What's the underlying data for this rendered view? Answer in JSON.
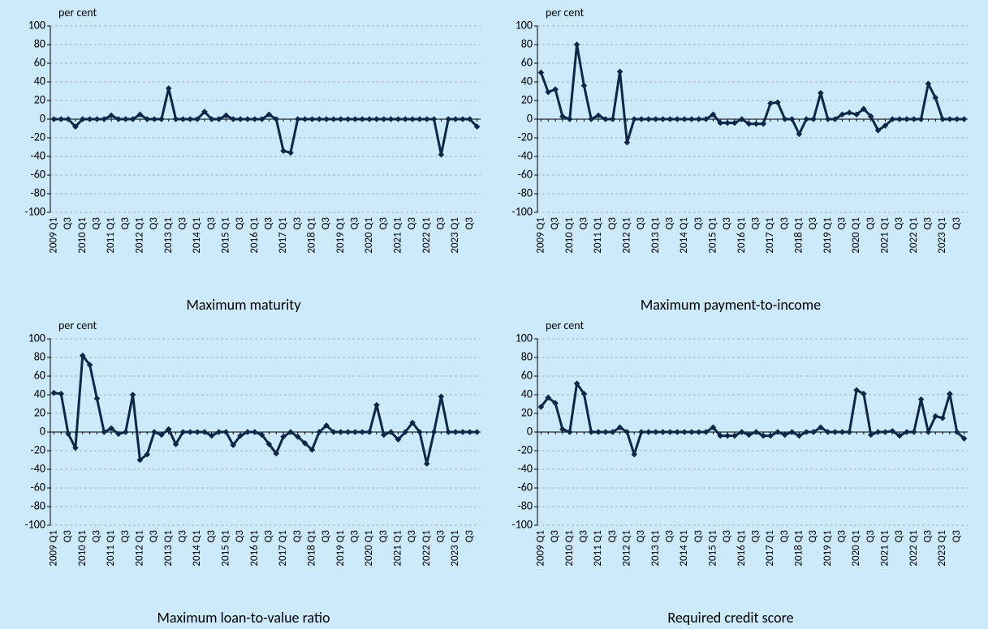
{
  "chart_data": [
    {
      "type": "line",
      "title": "Maximum maturity",
      "y_label": "per cent",
      "color": "#0e2748",
      "categories": [
        "2009 Q1",
        null,
        "Q3",
        null,
        "2010 Q1",
        null,
        "Q3",
        null,
        "2011 Q1",
        null,
        "Q3",
        null,
        "2012 Q1",
        null,
        "Q3",
        null,
        "2013 Q1",
        null,
        "Q3",
        null,
        "2014 Q1",
        null,
        "Q3",
        null,
        "2015 Q1",
        null,
        "Q3",
        null,
        "2016 Q1",
        null,
        "Q3",
        null,
        "2017 Q1",
        null,
        "Q3",
        null,
        "2018 Q1",
        null,
        "Q3",
        null,
        "2019 Q1",
        null,
        "Q3",
        null,
        "2020 Q1",
        null,
        "Q3",
        null,
        "2021 Q1",
        null,
        "Q3",
        null,
        "2022 Q1",
        null,
        "Q3",
        null,
        "2023 Q1",
        null,
        "Q3",
        null
      ],
      "values": [
        0,
        0,
        0,
        -8,
        0,
        0,
        0,
        0,
        4,
        0,
        0,
        0,
        5,
        0,
        0,
        0,
        33,
        0,
        0,
        0,
        0,
        8,
        0,
        0,
        4,
        0,
        0,
        0,
        0,
        0,
        5,
        0,
        -34,
        -36,
        0,
        0,
        0,
        0,
        0,
        0,
        0,
        0,
        0,
        0,
        0,
        0,
        0,
        0,
        0,
        0,
        0,
        0,
        0,
        0,
        -38,
        0,
        0,
        0,
        0,
        -8
      ],
      "ylim": [
        -100,
        100
      ],
      "yticks": [
        -100,
        -80,
        -60,
        -40,
        -20,
        0,
        20,
        40,
        60,
        80,
        100
      ],
      "grid": true
    },
    {
      "type": "line",
      "title": "Maximum payment-to-income",
      "y_label": "per cent",
      "color": "#0e2748",
      "categories": [
        "2009 Q1",
        null,
        "Q3",
        null,
        "2010 Q1",
        null,
        "Q3",
        null,
        "2011 Q1",
        null,
        "Q3",
        null,
        "2012 Q1",
        null,
        "Q3",
        null,
        "2013 Q1",
        null,
        "Q3",
        null,
        "2014 Q1",
        null,
        "Q3",
        null,
        "2015 Q1",
        null,
        "Q3",
        null,
        "2016 Q1",
        null,
        "Q3",
        null,
        "2017 Q1",
        null,
        "Q3",
        null,
        "2018 Q1",
        null,
        "Q3",
        null,
        "2019 Q1",
        null,
        "Q3",
        null,
        "2020 Q1",
        null,
        "Q3",
        null,
        "2021 Q1",
        null,
        "Q3",
        null,
        "2022 Q1",
        null,
        "Q3",
        null,
        "2023 Q1",
        null,
        "Q3",
        null
      ],
      "values": [
        50,
        29,
        32,
        3,
        0,
        80,
        36,
        0,
        4,
        0,
        0,
        51,
        -25,
        0,
        0,
        0,
        0,
        0,
        0,
        0,
        0,
        0,
        0,
        0,
        5,
        -4,
        -4,
        -4,
        0,
        -5,
        -5,
        -5,
        17,
        18,
        0,
        0,
        -16,
        0,
        0,
        28,
        0,
        0,
        5,
        7,
        5,
        11,
        3,
        -12,
        -7,
        0,
        0,
        0,
        0,
        0,
        38,
        23,
        0,
        0,
        0,
        0
      ],
      "ylim": [
        -100,
        100
      ],
      "yticks": [
        -100,
        -80,
        -60,
        -40,
        -20,
        0,
        20,
        40,
        60,
        80,
        100
      ],
      "grid": true
    },
    {
      "type": "line",
      "title": "Maximum loan-to-value ratio",
      "y_label": "per cent",
      "color": "#0e2748",
      "categories": [
        "2009 Q1",
        null,
        "Q3",
        null,
        "2010 Q1",
        null,
        "Q3",
        null,
        "2011 Q1",
        null,
        "Q3",
        null,
        "2012 Q1",
        null,
        "Q3",
        null,
        "2013 Q1",
        null,
        "Q3",
        null,
        "2014 Q1",
        null,
        "Q3",
        null,
        "2015 Q1",
        null,
        "Q3",
        null,
        "2016 Q1",
        null,
        "Q3",
        null,
        "2017 Q1",
        null,
        "Q3",
        null,
        "2018 Q1",
        null,
        "Q3",
        null,
        "2019 Q1",
        null,
        "Q3",
        null,
        "2020 Q1",
        null,
        "Q3",
        null,
        "2021 Q1",
        null,
        "Q3",
        null,
        "2022 Q1",
        null,
        "Q3",
        null,
        "2023 Q1",
        null,
        "Q3",
        null
      ],
      "values": [
        42,
        41,
        -2,
        -17,
        82,
        72,
        36,
        0,
        4,
        -2,
        0,
        40,
        -30,
        -24,
        0,
        -3,
        3,
        -13,
        0,
        0,
        0,
        0,
        -4,
        0,
        0,
        -14,
        -4,
        0,
        0,
        -3,
        -13,
        -23,
        -5,
        0,
        -5,
        -12,
        -19,
        0,
        7,
        0,
        0,
        0,
        0,
        0,
        0,
        29,
        -3,
        0,
        -8,
        0,
        10,
        0,
        -34,
        0,
        38,
        0,
        0,
        0,
        0,
        0
      ],
      "ylim": [
        -100,
        100
      ],
      "yticks": [
        -100,
        -80,
        -60,
        -40,
        -20,
        0,
        20,
        40,
        60,
        80,
        100
      ],
      "grid": true
    },
    {
      "type": "line",
      "title": "Required credit score",
      "y_label": "per cent",
      "color": "#0e2748",
      "categories": [
        "2009 Q1",
        null,
        "Q3",
        null,
        "2010 Q1",
        null,
        "Q3",
        null,
        "2011 Q1",
        null,
        "Q3",
        null,
        "2012 Q1",
        null,
        "Q3",
        null,
        "2013 Q1",
        null,
        "Q3",
        null,
        "2014 Q1",
        null,
        "Q3",
        null,
        "2015 Q1",
        null,
        "Q3",
        null,
        "2016 Q1",
        null,
        "Q3",
        null,
        "2017 Q1",
        null,
        "Q3",
        null,
        "2018 Q1",
        null,
        "Q3",
        null,
        "2019 Q1",
        null,
        "Q3",
        null,
        "2020 Q1",
        null,
        "Q3",
        null,
        "2021 Q1",
        null,
        "Q3",
        null,
        "2022 Q1",
        null,
        "Q3",
        null,
        "2023 Q1",
        null,
        "Q3",
        null
      ],
      "values": [
        27,
        37,
        31,
        3,
        0,
        52,
        41,
        0,
        0,
        0,
        0,
        5,
        0,
        -24,
        0,
        0,
        0,
        0,
        0,
        0,
        0,
        0,
        0,
        0,
        5,
        -4,
        -4,
        -4,
        0,
        -3,
        0,
        -4,
        -4,
        0,
        -3,
        0,
        -4,
        0,
        0,
        5,
        0,
        0,
        0,
        0,
        45,
        41,
        -3,
        0,
        0,
        1,
        -4,
        0,
        0,
        35,
        0,
        17,
        15,
        41,
        0,
        -7
      ],
      "ylim": [
        -100,
        100
      ],
      "yticks": [
        -100,
        -80,
        -60,
        -40,
        -20,
        0,
        20,
        40,
        60,
        80,
        100
      ],
      "grid": true
    }
  ]
}
